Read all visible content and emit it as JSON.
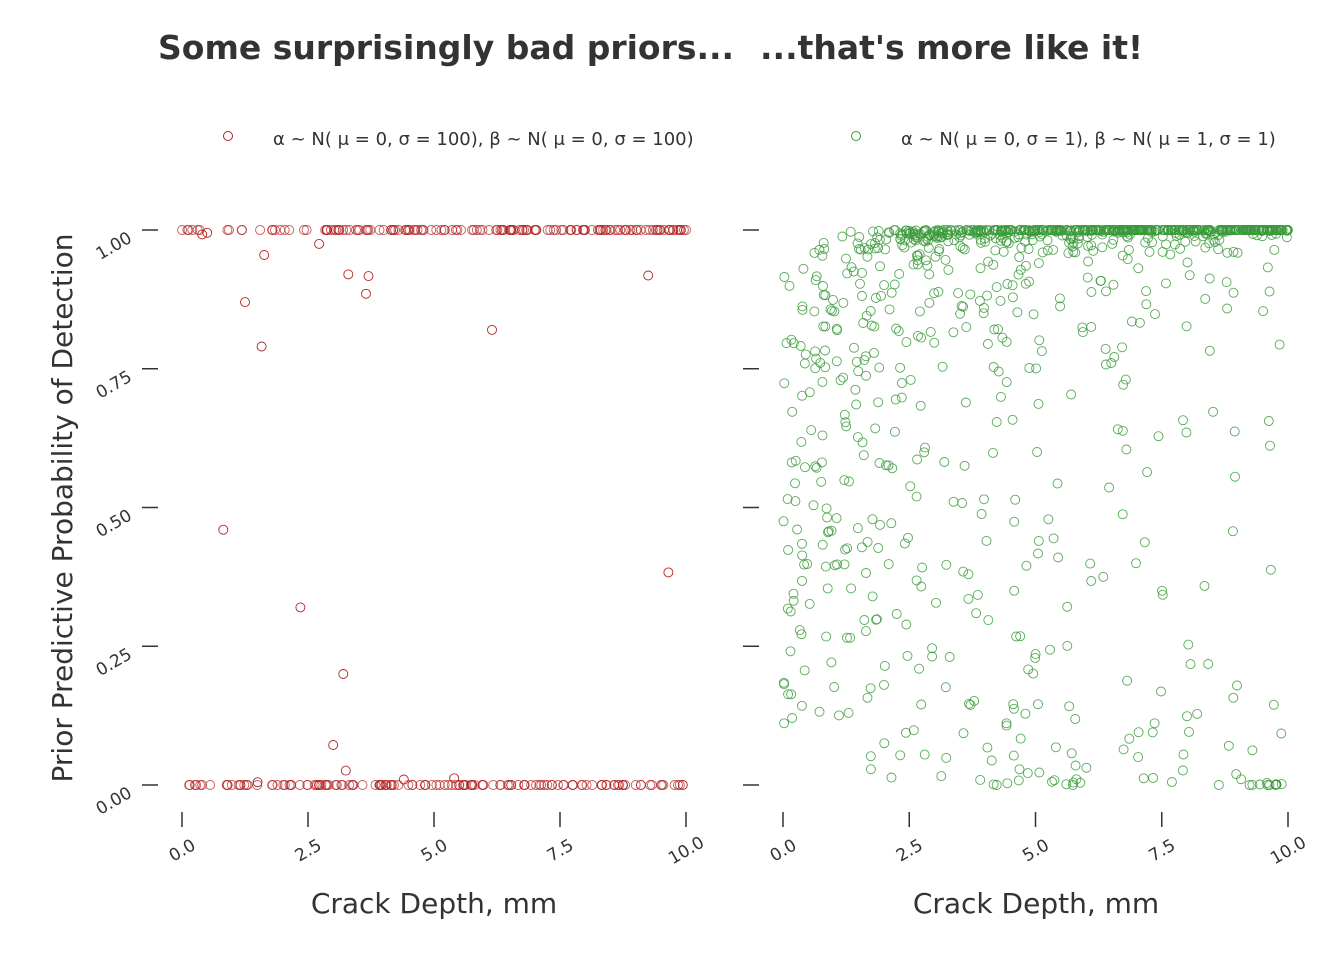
{
  "colors": {
    "left_series": "#b22222",
    "right_series": "#3a9a3a",
    "text": "#333333",
    "axis": "#333333"
  },
  "panels": {
    "left": {
      "title": "Some surprisingly bad priors..."
    },
    "right": {
      "title": "...that's more like it!"
    }
  },
  "chart_data": [
    {
      "type": "scatter",
      "title": "Some surprisingly bad priors...",
      "xlabel": "Crack Depth, mm",
      "ylabel": "Prior Predictive Probability of Detection",
      "xlim": [
        0,
        10
      ],
      "ylim": [
        0,
        1
      ],
      "x_ticks": [
        "0.0",
        "2.5",
        "5.0",
        "7.5",
        "10.0"
      ],
      "y_ticks": [
        "0.00",
        "0.25",
        "0.50",
        "0.75",
        "1.00"
      ],
      "legend": "top",
      "series": [
        {
          "name": "α ~ N( μ = 0, σ = 100),  β  ~ N( μ = 0, σ = 100)",
          "marker": "open-circle",
          "saturated_fraction_high": 0.5,
          "points": [
            [
              0.82,
              0.46
            ],
            [
              1.25,
              0.87
            ],
            [
              1.58,
              0.79
            ],
            [
              1.63,
              0.955
            ],
            [
              2.35,
              0.32
            ],
            [
              2.72,
              0.975
            ],
            [
              3.0,
              0.072
            ],
            [
              3.2,
              0.2
            ],
            [
              3.25,
              0.026
            ],
            [
              3.3,
              0.92
            ],
            [
              3.65,
              0.885
            ],
            [
              3.7,
              0.917
            ],
            [
              4.4,
              0.01
            ],
            [
              5.4,
              0.012
            ],
            [
              6.15,
              0.82
            ],
            [
              9.25,
              0.918
            ],
            [
              9.65,
              0.383
            ],
            [
              0.4,
              0.992
            ],
            [
              0.5,
              0.995
            ],
            [
              1.5,
              0.005
            ]
          ]
        }
      ]
    },
    {
      "type": "scatter",
      "title": "...that's more like it!",
      "xlabel": "Crack Depth, mm",
      "xlim": [
        0,
        10
      ],
      "ylim": [
        0,
        1
      ],
      "x_ticks": [
        "0.0",
        "2.5",
        "5.0",
        "7.5",
        "10.0"
      ],
      "legend": "top",
      "series": [
        {
          "name": "α ~ N( μ = 0, σ = 1),  β  ~ N( μ = 1, σ = 1)",
          "marker": "open-circle",
          "distribution": "prior predictive of logistic(α + β·depth), α~N(0,1), β~N(1,1)",
          "point_count": 1000
        }
      ]
    }
  ]
}
